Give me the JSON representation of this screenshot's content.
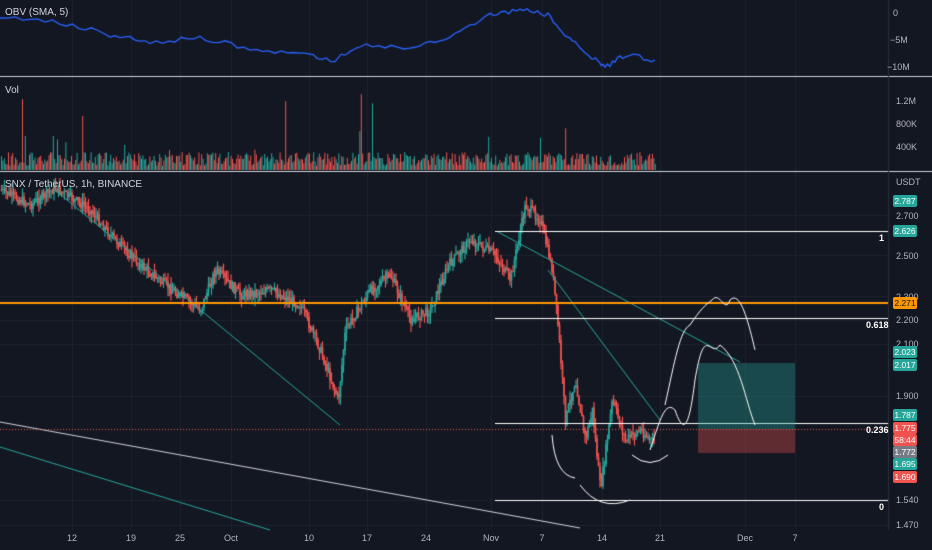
{
  "obv": {
    "label": "OBV (SMA, 5)",
    "axis": [
      "0",
      "−5M",
      "−10M"
    ]
  },
  "volume": {
    "label": "Vol",
    "axis": [
      "1.2M",
      "800K",
      "400K"
    ]
  },
  "price": {
    "symbol_label": "SNX / TetherUS, 1h, BINANCE",
    "currency": "USDT",
    "axis": [
      "2.700",
      "2.500",
      "2.300",
      "2.200",
      "2.100",
      "1.900",
      "1.540",
      "1.470"
    ]
  },
  "tags": {
    "top": "2.787",
    "fib_one": "2.626",
    "horizontal_line": "2.271",
    "target_a": "2.023",
    "target_b": "2.017",
    "level_a": "1.787",
    "last_price": "1.775",
    "countdown": "58:44",
    "bid": "1.772",
    "level_b": "1.695",
    "stop": "1.690"
  },
  "fib_levels": [
    "1",
    "0.618",
    "0.236",
    "0"
  ],
  "time_axis": [
    "12",
    "19",
    "25",
    "Oct",
    "10",
    "17",
    "24",
    "Nov",
    "7",
    "14",
    "21",
    "Dec",
    "7"
  ],
  "colors": {
    "background": "#131722",
    "up": "#26a69a",
    "down": "#ef5350",
    "obv_line": "#2962ff",
    "horizontal_line": "#ff9800",
    "trendline": "#26a69a",
    "fib_line": "#ffffff",
    "target_box": "#26a69a",
    "stop_box": "#ef5350"
  }
}
